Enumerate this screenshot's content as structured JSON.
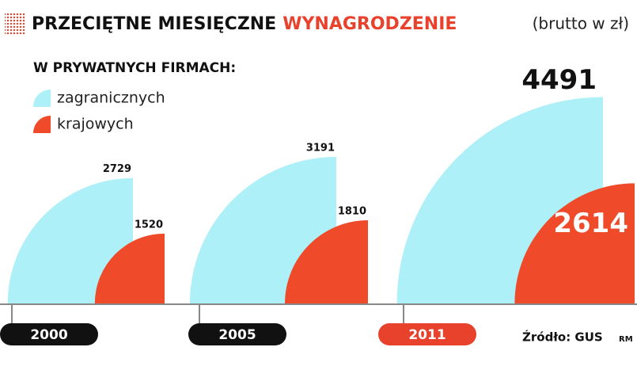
{
  "chart_data": {
    "type": "quarter-circle",
    "title": "PRZECIĘTNE MIESIĘCZNE",
    "title_highlight": "WYNAGRODZENIE",
    "subtitle": "(brutto w zł)",
    "legend_title": "W PRYWATNYCH FIRMACH:",
    "categories": [
      "2000",
      "2005",
      "2011"
    ],
    "category_colors": [
      "#111111",
      "#111111",
      "#e8412c"
    ],
    "series": [
      {
        "name": "zagranicznych",
        "color": "#aef0f7",
        "values": [
          2729,
          3191,
          4491
        ]
      },
      {
        "name": "krajowych",
        "color": "#ef4b2a",
        "values": [
          1520,
          1810,
          2614
        ]
      }
    ],
    "source": "Źródło: GUS",
    "author": "RM"
  }
}
